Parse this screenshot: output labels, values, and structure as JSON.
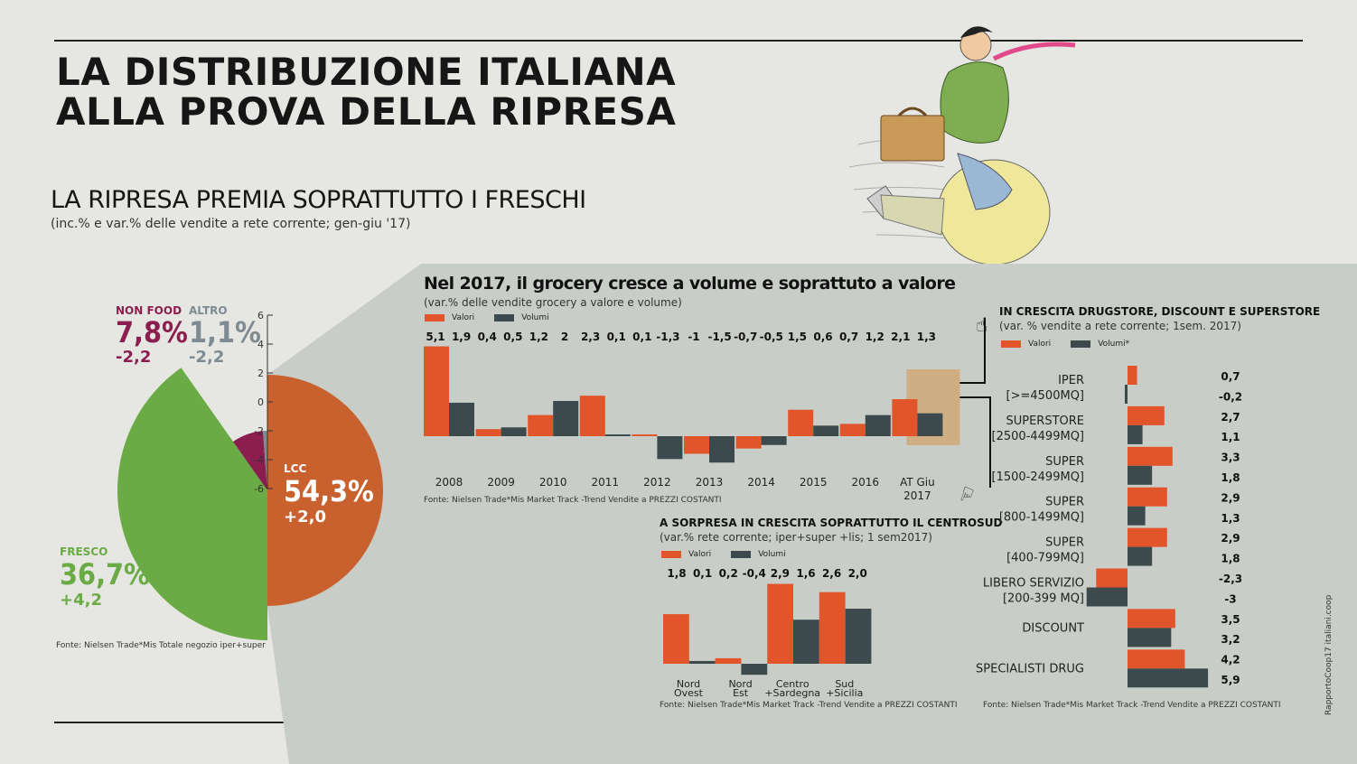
{
  "header": {
    "title": "LA DISTRIBUZIONE ITALIANA\nALLA PROVA DELLA RIPRESA"
  },
  "pie_section": {
    "title": "LA RIPRESA PREMIA SOPRATTUTTO I FRESCHI",
    "subtitle": "(inc.% e var.% delle vendite a rete corrente; gen-giu '17)",
    "source": "Fonte: Nielsen Trade*Mis Totale negozio iper+super",
    "axis_ticks": [
      "6",
      "4",
      "2",
      "0",
      "-2",
      "-4",
      "-6"
    ]
  },
  "bars_section": {
    "title": "Nel 2017, il grocery cresce a volume e soprattuto a valore",
    "subtitle": "(var.% delle vendite grocery  a valore e volume)",
    "legend": [
      "Valori",
      "Volumi"
    ],
    "source": "Fonte: Nielsen Trade*Mis Market Track -Trend Vendite a PREZZI COSTANTI",
    "value_labels": [
      "5,1",
      "1,9",
      "0,4",
      "0,5",
      "1,2",
      "2",
      "2,3",
      "0,1",
      "0,1",
      "-1,3",
      "-1",
      "-1,5",
      "-0,7",
      "-0,5",
      "1,5",
      "0,6",
      "0,7",
      "1,2",
      "2,1",
      "1,3"
    ]
  },
  "region_section": {
    "title": "A SORPRESA IN CRESCITA SOPRATTUTTO IL CENTROSUD",
    "subtitle": "(var.% rete corrente; iper+super +lis; 1 sem2017)",
    "legend": [
      "Valori",
      "Volumi"
    ],
    "source": "Fonte: Nielsen Trade*Mis Market Track -Trend Vendite a PREZZI COSTANTI",
    "value_labels": [
      "1,8",
      "0,1",
      "0,2",
      "-0,4",
      "2,9",
      "1,6",
      "2,6",
      "2,0"
    ]
  },
  "channel_section": {
    "title": "IN CRESCITA DRUGSTORE, DISCOUNT E SUPERSTORE",
    "subtitle": "(var. % vendite a rete corrente; 1sem. 2017)",
    "legend": [
      "Valori",
      "Volumi*"
    ],
    "source": "Fonte: Nielsen Trade*Mis Market Track -Trend Vendite a PREZZI COSTANTI",
    "value_labels": [
      "0,7",
      "-0,2",
      "2,7",
      "1,1",
      "3,3",
      "1,8",
      "2,9",
      "1,3",
      "2,9",
      "1,8",
      "-2,3",
      "-3",
      "3,5",
      "3,2",
      "4,2",
      "5,9"
    ]
  },
  "credit": "RapportoCoop17 italiani.coop",
  "colors": {
    "orange": "#e2542a",
    "dark": "#3c4a4d",
    "green": "#6aab45",
    "maroon": "#8b1e4f",
    "grey": "#7f8b92",
    "lcc": "#c9612e",
    "panel": "#c9cdc7"
  },
  "chart_data": [
    {
      "type": "pie",
      "title": "LA RIPRESA PREMIA SOPRATTUTTO I FRESCHI",
      "subtitle": "(inc.% e var.% delle vendite a rete corrente; gen-giu '17)",
      "ylim": [
        -6,
        6
      ],
      "slices": [
        {
          "name": "LCC",
          "share": 54.3,
          "share_label": "54,3%",
          "var_label": "+2,0",
          "var": 2.0
        },
        {
          "name": "FRESCO",
          "share": 36.7,
          "share_label": "36,7%",
          "var_label": "+4,2",
          "var": 4.2
        },
        {
          "name": "NON FOOD",
          "share": 7.8,
          "share_label": "7,8%",
          "var_label": "-2,2",
          "var": -2.2
        },
        {
          "name": "ALTRO",
          "share": 1.1,
          "share_label": "1,1%",
          "var_label": "-2,2",
          "var": -2.2
        }
      ]
    },
    {
      "type": "bar",
      "title": "Nel 2017, il grocery cresce a volume e soprattuto a valore",
      "categories": [
        "2008",
        "2009",
        "2010",
        "2011",
        "2012",
        "2013",
        "2014",
        "2015",
        "2016",
        "AT Giu\n2017"
      ],
      "series": [
        {
          "name": "Valori",
          "values": [
            5.1,
            0.4,
            1.2,
            2.3,
            0.1,
            -1.0,
            -0.7,
            1.5,
            0.7,
            2.1
          ]
        },
        {
          "name": "Volumi",
          "values": [
            1.9,
            0.5,
            2.0,
            0.1,
            -1.3,
            -1.5,
            -0.5,
            0.6,
            1.2,
            1.3
          ]
        }
      ]
    },
    {
      "type": "bar",
      "title": "A SORPRESA IN CRESCITA SOPRATTUTTO IL CENTROSUD",
      "categories": [
        "Nord\nOvest",
        "Nord\nEst",
        "Centro\n+Sardegna",
        "Sud\n+Sicilia"
      ],
      "series": [
        {
          "name": "Valori",
          "values": [
            1.8,
            0.2,
            2.9,
            2.6
          ]
        },
        {
          "name": "Volumi",
          "values": [
            0.1,
            -0.4,
            1.6,
            2.0
          ]
        }
      ]
    },
    {
      "type": "bar",
      "orientation": "horizontal",
      "title": "IN CRESCITA DRUGSTORE, DISCOUNT E SUPERSTORE",
      "categories": [
        "IPER\n[>=4500MQ]",
        "SUPERSTORE\n[2500-4499MQ]",
        "SUPER\n[1500-2499MQ]",
        "SUPER\n[800-1499MQ]",
        "SUPER\n[400-799MQ]",
        "LIBERO SERVIZIO\n[200-399 MQ]",
        "DISCOUNT",
        "SPECIALISTI DRUG"
      ],
      "series": [
        {
          "name": "Valori",
          "values": [
            0.7,
            2.7,
            3.3,
            2.9,
            2.9,
            -2.3,
            3.5,
            4.2
          ]
        },
        {
          "name": "Volumi*",
          "values": [
            -0.2,
            1.1,
            1.8,
            1.3,
            1.8,
            -3.0,
            3.2,
            5.9
          ]
        }
      ]
    }
  ]
}
